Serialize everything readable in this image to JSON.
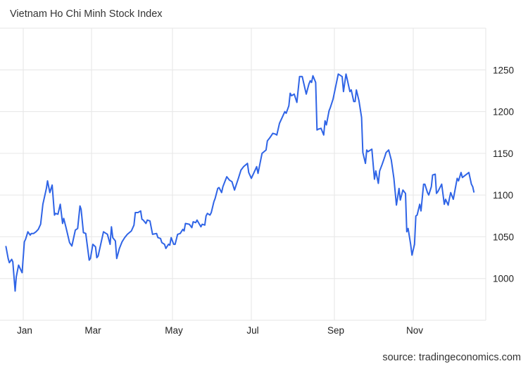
{
  "chart_data": {
    "type": "line",
    "title": "Vietnam Ho Chi Minh Stock Index",
    "source": "source: tradingeconomics.com",
    "xlabel": "",
    "ylabel": "",
    "ylim": [
      950,
      1300
    ],
    "yticks": [
      1000,
      1050,
      1100,
      1150,
      1200,
      1250
    ],
    "ytick_labels": [
      "1000",
      "1050",
      "1100",
      "1150",
      "1200",
      "1250"
    ],
    "xtick_labels": [
      "Jan",
      "Mar",
      "May",
      "Jul",
      "Sep",
      "Nov"
    ],
    "grid": true,
    "y_axis_side": "right",
    "line_color": "#2f64e6",
    "series": [
      {
        "x": [
          "12-17",
          "12-19",
          "12-20",
          "12-22",
          "12-23",
          "12-25",
          "12-26",
          "12-28",
          "12-30",
          "12-31",
          "01-02",
          "01-03",
          "01-05",
          "01-07",
          "01-08",
          "01-10",
          "01-12",
          "01-14",
          "01-16",
          "01-18",
          "01-21",
          "01-22",
          "01-24",
          "01-26",
          "01-28",
          "01-29",
          "01-31",
          "02-02",
          "02-04",
          "02-05",
          "02-07",
          "02-10",
          "02-12",
          "02-15",
          "02-17",
          "02-19",
          "02-20",
          "02-22",
          "02-24",
          "02-27",
          "02-28",
          "03-02",
          "03-04",
          "03-05",
          "03-06",
          "03-10",
          "03-12",
          "03-13",
          "03-15",
          "03-16",
          "03-17",
          "03-19",
          "03-20",
          "03-22",
          "03-24",
          "03-26",
          "03-28",
          "03-31",
          "04-02",
          "04-03",
          "04-05",
          "04-07",
          "04-08",
          "04-09",
          "04-11",
          "04-12",
          "04-14",
          "04-16",
          "04-19",
          "04-20",
          "04-22",
          "04-23",
          "04-25",
          "04-26",
          "04-28",
          "04-29",
          "04-30",
          "05-02",
          "05-03",
          "05-05",
          "05-07",
          "05-09",
          "05-10",
          "05-11",
          "05-14",
          "05-16",
          "05-17",
          "05-19",
          "05-20",
          "05-23",
          "05-24",
          "05-26",
          "05-27",
          "05-28",
          "05-30",
          "05-31",
          "06-02",
          "06-03",
          "06-05",
          "06-06",
          "06-08",
          "06-09",
          "06-12",
          "06-14",
          "06-16",
          "06-18",
          "06-21",
          "06-23",
          "06-25",
          "06-28",
          "06-29",
          "07-01",
          "07-05",
          "07-06",
          "07-09",
          "07-12",
          "07-13",
          "07-15",
          "07-17",
          "07-19",
          "07-20",
          "07-22",
          "07-24",
          "07-26",
          "07-27",
          "07-29",
          "07-30",
          "07-31",
          "08-02",
          "08-04",
          "08-06",
          "08-08",
          "08-09",
          "08-11",
          "08-13",
          "08-14",
          "08-15",
          "08-16",
          "08-18",
          "08-19",
          "08-20",
          "08-22",
          "08-24",
          "08-25",
          "08-26",
          "08-28",
          "08-29",
          "08-31",
          "09-04",
          "09-07",
          "09-08",
          "09-10",
          "09-11",
          "09-13",
          "09-14",
          "09-16",
          "09-17",
          "09-18",
          "09-20",
          "09-22",
          "09-23",
          "09-25",
          "09-26",
          "09-27",
          "09-30",
          "10-02",
          "10-03",
          "10-05",
          "10-06",
          "10-08",
          "10-10",
          "10-11",
          "10-13",
          "10-15",
          "10-17",
          "10-19",
          "10-21",
          "10-22",
          "10-24",
          "10-26",
          "10-27",
          "10-28",
          "10-30",
          "10-31",
          "11-02",
          "11-03",
          "11-04",
          "11-06",
          "11-07",
          "11-09",
          "11-10",
          "11-12",
          "11-13",
          "11-15",
          "11-16",
          "11-18",
          "11-19",
          "11-20",
          "11-23",
          "11-25",
          "11-26",
          "11-28",
          "11-29",
          "11-30",
          "12-02",
          "12-05",
          "12-06",
          "12-08",
          "12-09",
          "12-14",
          "12-16",
          "12-17",
          "12-18"
        ],
        "values": [
          1039,
          1024,
          1019,
          1023,
          1020,
          985,
          1002,
          1016,
          1010,
          1007,
          1044,
          1047,
          1056,
          1052,
          1054,
          1054,
          1056,
          1059,
          1065,
          1089,
          1108,
          1117,
          1103,
          1112,
          1076,
          1078,
          1077,
          1089,
          1066,
          1072,
          1061,
          1043,
          1039,
          1058,
          1060,
          1087,
          1083,
          1055,
          1054,
          1022,
          1024,
          1041,
          1038,
          1025,
          1027,
          1056,
          1054,
          1053,
          1041,
          1062,
          1049,
          1045,
          1024,
          1036,
          1044,
          1049,
          1053,
          1057,
          1064,
          1079,
          1079,
          1081,
          1071,
          1070,
          1066,
          1070,
          1069,
          1053,
          1054,
          1049,
          1048,
          1043,
          1041,
          1036,
          1041,
          1040,
          1049,
          1041,
          1041,
          1053,
          1054,
          1059,
          1057,
          1066,
          1065,
          1061,
          1068,
          1067,
          1070,
          1062,
          1065,
          1064,
          1075,
          1078,
          1076,
          1079,
          1092,
          1096,
          1108,
          1109,
          1103,
          1110,
          1122,
          1118,
          1116,
          1106,
          1120,
          1130,
          1134,
          1138,
          1127,
          1120,
          1134,
          1126,
          1150,
          1154,
          1165,
          1169,
          1174,
          1173,
          1172,
          1186,
          1193,
          1200,
          1198,
          1207,
          1222,
          1219,
          1221,
          1211,
          1242,
          1242,
          1235,
          1221,
          1233,
          1237,
          1235,
          1243,
          1235,
          1178,
          1179,
          1180,
          1172,
          1189,
          1184,
          1201,
          1205,
          1215,
          1245,
          1242,
          1224,
          1245,
          1238,
          1224,
          1226,
          1212,
          1212,
          1226,
          1213,
          1193,
          1151,
          1138,
          1154,
          1152,
          1155,
          1119,
          1129,
          1114,
          1129,
          1137,
          1146,
          1151,
          1154,
          1142,
          1120,
          1088,
          1108,
          1094,
          1106,
          1102,
          1056,
          1060,
          1041,
          1028,
          1041,
          1075,
          1076,
          1089,
          1081,
          1113,
          1113,
          1103,
          1100,
          1110,
          1124,
          1125,
          1102,
          1104,
          1113,
          1089,
          1095,
          1088,
          1096,
          1103,
          1095,
          1120,
          1117,
          1127,
          1121,
          1127,
          1113,
          1110,
          1103
        ]
      }
    ]
  }
}
